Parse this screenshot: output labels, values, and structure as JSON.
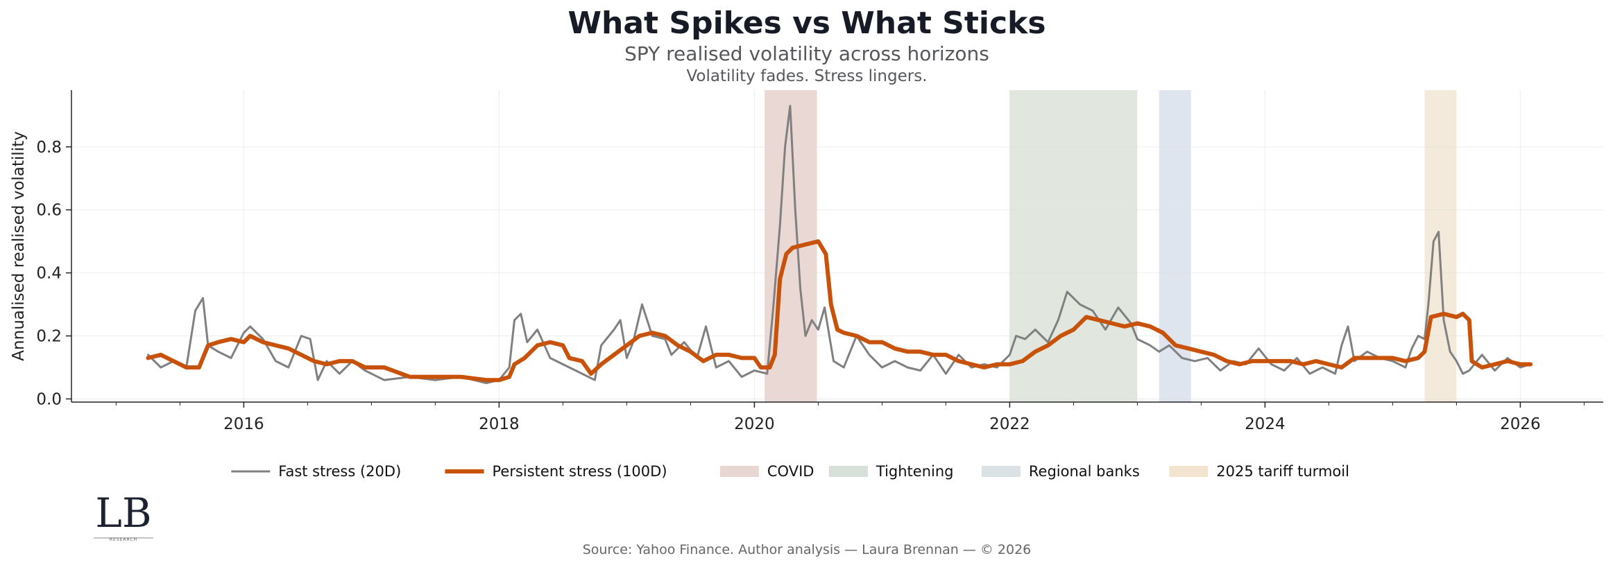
{
  "chart_data": {
    "type": "line",
    "title": "What Spikes vs What Sticks",
    "subtitle": "SPY realised volatility across horizons",
    "tagline": "Volatility fades. Stress lingers.",
    "xlabel": "",
    "ylabel": "Annualised realised volatility",
    "xlim": [
      2014.65,
      2026.65
    ],
    "ylim": [
      -0.01,
      0.98
    ],
    "x_ticks": [
      2016,
      2018,
      2020,
      2022,
      2024,
      2026
    ],
    "x_tick_labels": [
      "2016",
      "2018",
      "2020",
      "2022",
      "2024",
      "2026"
    ],
    "y_ticks": [
      0.0,
      0.2,
      0.4,
      0.6,
      0.8
    ],
    "y_tick_labels": [
      "0.0",
      "0.2",
      "0.4",
      "0.6",
      "0.8"
    ],
    "grid": true,
    "legend_position": "bottom-center",
    "regimes": [
      {
        "name": "COVID",
        "start": 2020.08,
        "end": 2020.49,
        "color": "#d9b8b3"
      },
      {
        "name": "Tightening",
        "start": 2022.0,
        "end": 2023.0,
        "color": "#c8d3c4"
      },
      {
        "name": "Regional banks",
        "start": 2023.17,
        "end": 2023.42,
        "color": "#c3d0e0"
      },
      {
        "name": "2025 tariff turmoil",
        "start": 2025.25,
        "end": 2025.5,
        "color": "#ead9bd"
      }
    ],
    "regime_legend_colors": {
      "COVID": "#e8d6d3",
      "Tightening": "#d8e0da",
      "Regional banks": "#dbe2e5",
      "2025 tariff turmoil": "#f2e4cf"
    },
    "series": [
      {
        "name": "Fast stress (20D)",
        "color": "#808080",
        "x": [
          2015.25,
          2015.35,
          2015.45,
          2015.55,
          2015.62,
          2015.68,
          2015.72,
          2015.8,
          2015.9,
          2016.0,
          2016.05,
          2016.15,
          2016.25,
          2016.35,
          2016.45,
          2016.52,
          2016.58,
          2016.65,
          2016.75,
          2016.85,
          2016.95,
          2017.1,
          2017.3,
          2017.5,
          2017.7,
          2017.9,
          2018.0,
          2018.08,
          2018.12,
          2018.17,
          2018.22,
          2018.3,
          2018.4,
          2018.5,
          2018.6,
          2018.7,
          2018.75,
          2018.8,
          2018.9,
          2018.95,
          2019.0,
          2019.05,
          2019.12,
          2019.2,
          2019.3,
          2019.35,
          2019.45,
          2019.55,
          2019.62,
          2019.7,
          2019.8,
          2019.9,
          2020.0,
          2020.1,
          2020.15,
          2020.2,
          2020.24,
          2020.28,
          2020.32,
          2020.36,
          2020.4,
          2020.45,
          2020.5,
          2020.55,
          2020.62,
          2020.7,
          2020.8,
          2020.9,
          2021.0,
          2021.1,
          2021.2,
          2021.3,
          2021.4,
          2021.5,
          2021.6,
          2021.7,
          2021.8,
          2021.9,
          2022.0,
          2022.05,
          2022.12,
          2022.2,
          2022.3,
          2022.38,
          2022.45,
          2022.55,
          2022.65,
          2022.75,
          2022.85,
          2022.95,
          2023.0,
          2023.1,
          2023.17,
          2023.25,
          2023.35,
          2023.45,
          2023.55,
          2023.65,
          2023.75,
          2023.85,
          2023.95,
          2024.05,
          2024.15,
          2024.25,
          2024.35,
          2024.45,
          2024.55,
          2024.6,
          2024.65,
          2024.7,
          2024.8,
          2024.9,
          2025.0,
          2025.1,
          2025.15,
          2025.2,
          2025.25,
          2025.28,
          2025.32,
          2025.36,
          2025.4,
          2025.45,
          2025.5,
          2025.55,
          2025.6,
          2025.7,
          2025.8,
          2025.9,
          2026.0,
          2026.08
        ],
        "values": [
          0.14,
          0.1,
          0.12,
          0.1,
          0.28,
          0.32,
          0.17,
          0.15,
          0.13,
          0.21,
          0.23,
          0.19,
          0.12,
          0.1,
          0.2,
          0.19,
          0.06,
          0.12,
          0.08,
          0.12,
          0.09,
          0.06,
          0.07,
          0.06,
          0.07,
          0.05,
          0.06,
          0.1,
          0.25,
          0.27,
          0.18,
          0.22,
          0.13,
          0.11,
          0.09,
          0.07,
          0.06,
          0.17,
          0.22,
          0.25,
          0.13,
          0.18,
          0.3,
          0.2,
          0.19,
          0.14,
          0.18,
          0.13,
          0.23,
          0.1,
          0.12,
          0.07,
          0.09,
          0.08,
          0.3,
          0.55,
          0.8,
          0.93,
          0.6,
          0.35,
          0.2,
          0.25,
          0.22,
          0.29,
          0.12,
          0.1,
          0.2,
          0.14,
          0.1,
          0.12,
          0.1,
          0.09,
          0.14,
          0.08,
          0.14,
          0.1,
          0.11,
          0.1,
          0.14,
          0.2,
          0.19,
          0.22,
          0.18,
          0.25,
          0.34,
          0.3,
          0.28,
          0.22,
          0.29,
          0.24,
          0.19,
          0.17,
          0.15,
          0.17,
          0.13,
          0.12,
          0.13,
          0.09,
          0.12,
          0.11,
          0.16,
          0.11,
          0.09,
          0.13,
          0.08,
          0.1,
          0.08,
          0.17,
          0.23,
          0.12,
          0.15,
          0.13,
          0.12,
          0.1,
          0.16,
          0.2,
          0.19,
          0.3,
          0.5,
          0.53,
          0.25,
          0.15,
          0.12,
          0.08,
          0.09,
          0.14,
          0.09,
          0.13,
          0.1,
          0.11
        ]
      },
      {
        "name": "Persistent stress (100D)",
        "color": "#c8520a",
        "x": [
          2015.25,
          2015.35,
          2015.45,
          2015.55,
          2015.65,
          2015.72,
          2015.8,
          2015.9,
          2016.0,
          2016.05,
          2016.15,
          2016.25,
          2016.35,
          2016.45,
          2016.55,
          2016.65,
          2016.75,
          2016.85,
          2016.95,
          2017.1,
          2017.3,
          2017.5,
          2017.7,
          2017.9,
          2018.0,
          2018.08,
          2018.12,
          2018.2,
          2018.3,
          2018.4,
          2018.5,
          2018.55,
          2018.65,
          2018.72,
          2018.8,
          2018.9,
          2019.0,
          2019.1,
          2019.2,
          2019.3,
          2019.4,
          2019.5,
          2019.6,
          2019.7,
          2019.8,
          2019.9,
          2020.0,
          2020.05,
          2020.12,
          2020.16,
          2020.2,
          2020.25,
          2020.3,
          2020.4,
          2020.5,
          2020.56,
          2020.6,
          2020.65,
          2020.7,
          2020.8,
          2020.9,
          2021.0,
          2021.1,
          2021.2,
          2021.3,
          2021.4,
          2021.5,
          2021.6,
          2021.7,
          2021.8,
          2021.9,
          2022.0,
          2022.1,
          2022.2,
          2022.3,
          2022.4,
          2022.5,
          2022.6,
          2022.7,
          2022.8,
          2022.9,
          2023.0,
          2023.1,
          2023.2,
          2023.3,
          2023.4,
          2023.5,
          2023.6,
          2023.7,
          2023.8,
          2023.9,
          2024.0,
          2024.1,
          2024.2,
          2024.3,
          2024.4,
          2024.5,
          2024.6,
          2024.7,
          2024.8,
          2024.9,
          2025.0,
          2025.1,
          2025.2,
          2025.25,
          2025.3,
          2025.4,
          2025.5,
          2025.55,
          2025.6,
          2025.62,
          2025.7,
          2025.8,
          2025.9,
          2026.0,
          2026.08
        ],
        "values": [
          0.13,
          0.14,
          0.12,
          0.1,
          0.1,
          0.17,
          0.18,
          0.19,
          0.18,
          0.2,
          0.18,
          0.17,
          0.16,
          0.14,
          0.12,
          0.11,
          0.12,
          0.12,
          0.1,
          0.1,
          0.07,
          0.07,
          0.07,
          0.06,
          0.06,
          0.07,
          0.11,
          0.13,
          0.17,
          0.18,
          0.17,
          0.13,
          0.12,
          0.08,
          0.11,
          0.14,
          0.17,
          0.2,
          0.21,
          0.2,
          0.17,
          0.15,
          0.12,
          0.14,
          0.14,
          0.13,
          0.13,
          0.1,
          0.1,
          0.14,
          0.38,
          0.46,
          0.48,
          0.49,
          0.5,
          0.46,
          0.3,
          0.22,
          0.21,
          0.2,
          0.18,
          0.18,
          0.16,
          0.15,
          0.15,
          0.14,
          0.14,
          0.12,
          0.11,
          0.1,
          0.11,
          0.11,
          0.12,
          0.15,
          0.17,
          0.2,
          0.22,
          0.26,
          0.25,
          0.24,
          0.23,
          0.24,
          0.23,
          0.21,
          0.17,
          0.16,
          0.15,
          0.14,
          0.12,
          0.11,
          0.12,
          0.12,
          0.12,
          0.12,
          0.11,
          0.12,
          0.11,
          0.1,
          0.13,
          0.13,
          0.13,
          0.13,
          0.12,
          0.13,
          0.15,
          0.26,
          0.27,
          0.26,
          0.27,
          0.25,
          0.12,
          0.1,
          0.11,
          0.12,
          0.11,
          0.11
        ]
      }
    ]
  },
  "logo": {
    "text": "LB",
    "subtext": "RESEARCH"
  },
  "footer": {
    "source": "Source: Yahoo Finance. Author analysis — Laura Brennan — © 2026"
  }
}
